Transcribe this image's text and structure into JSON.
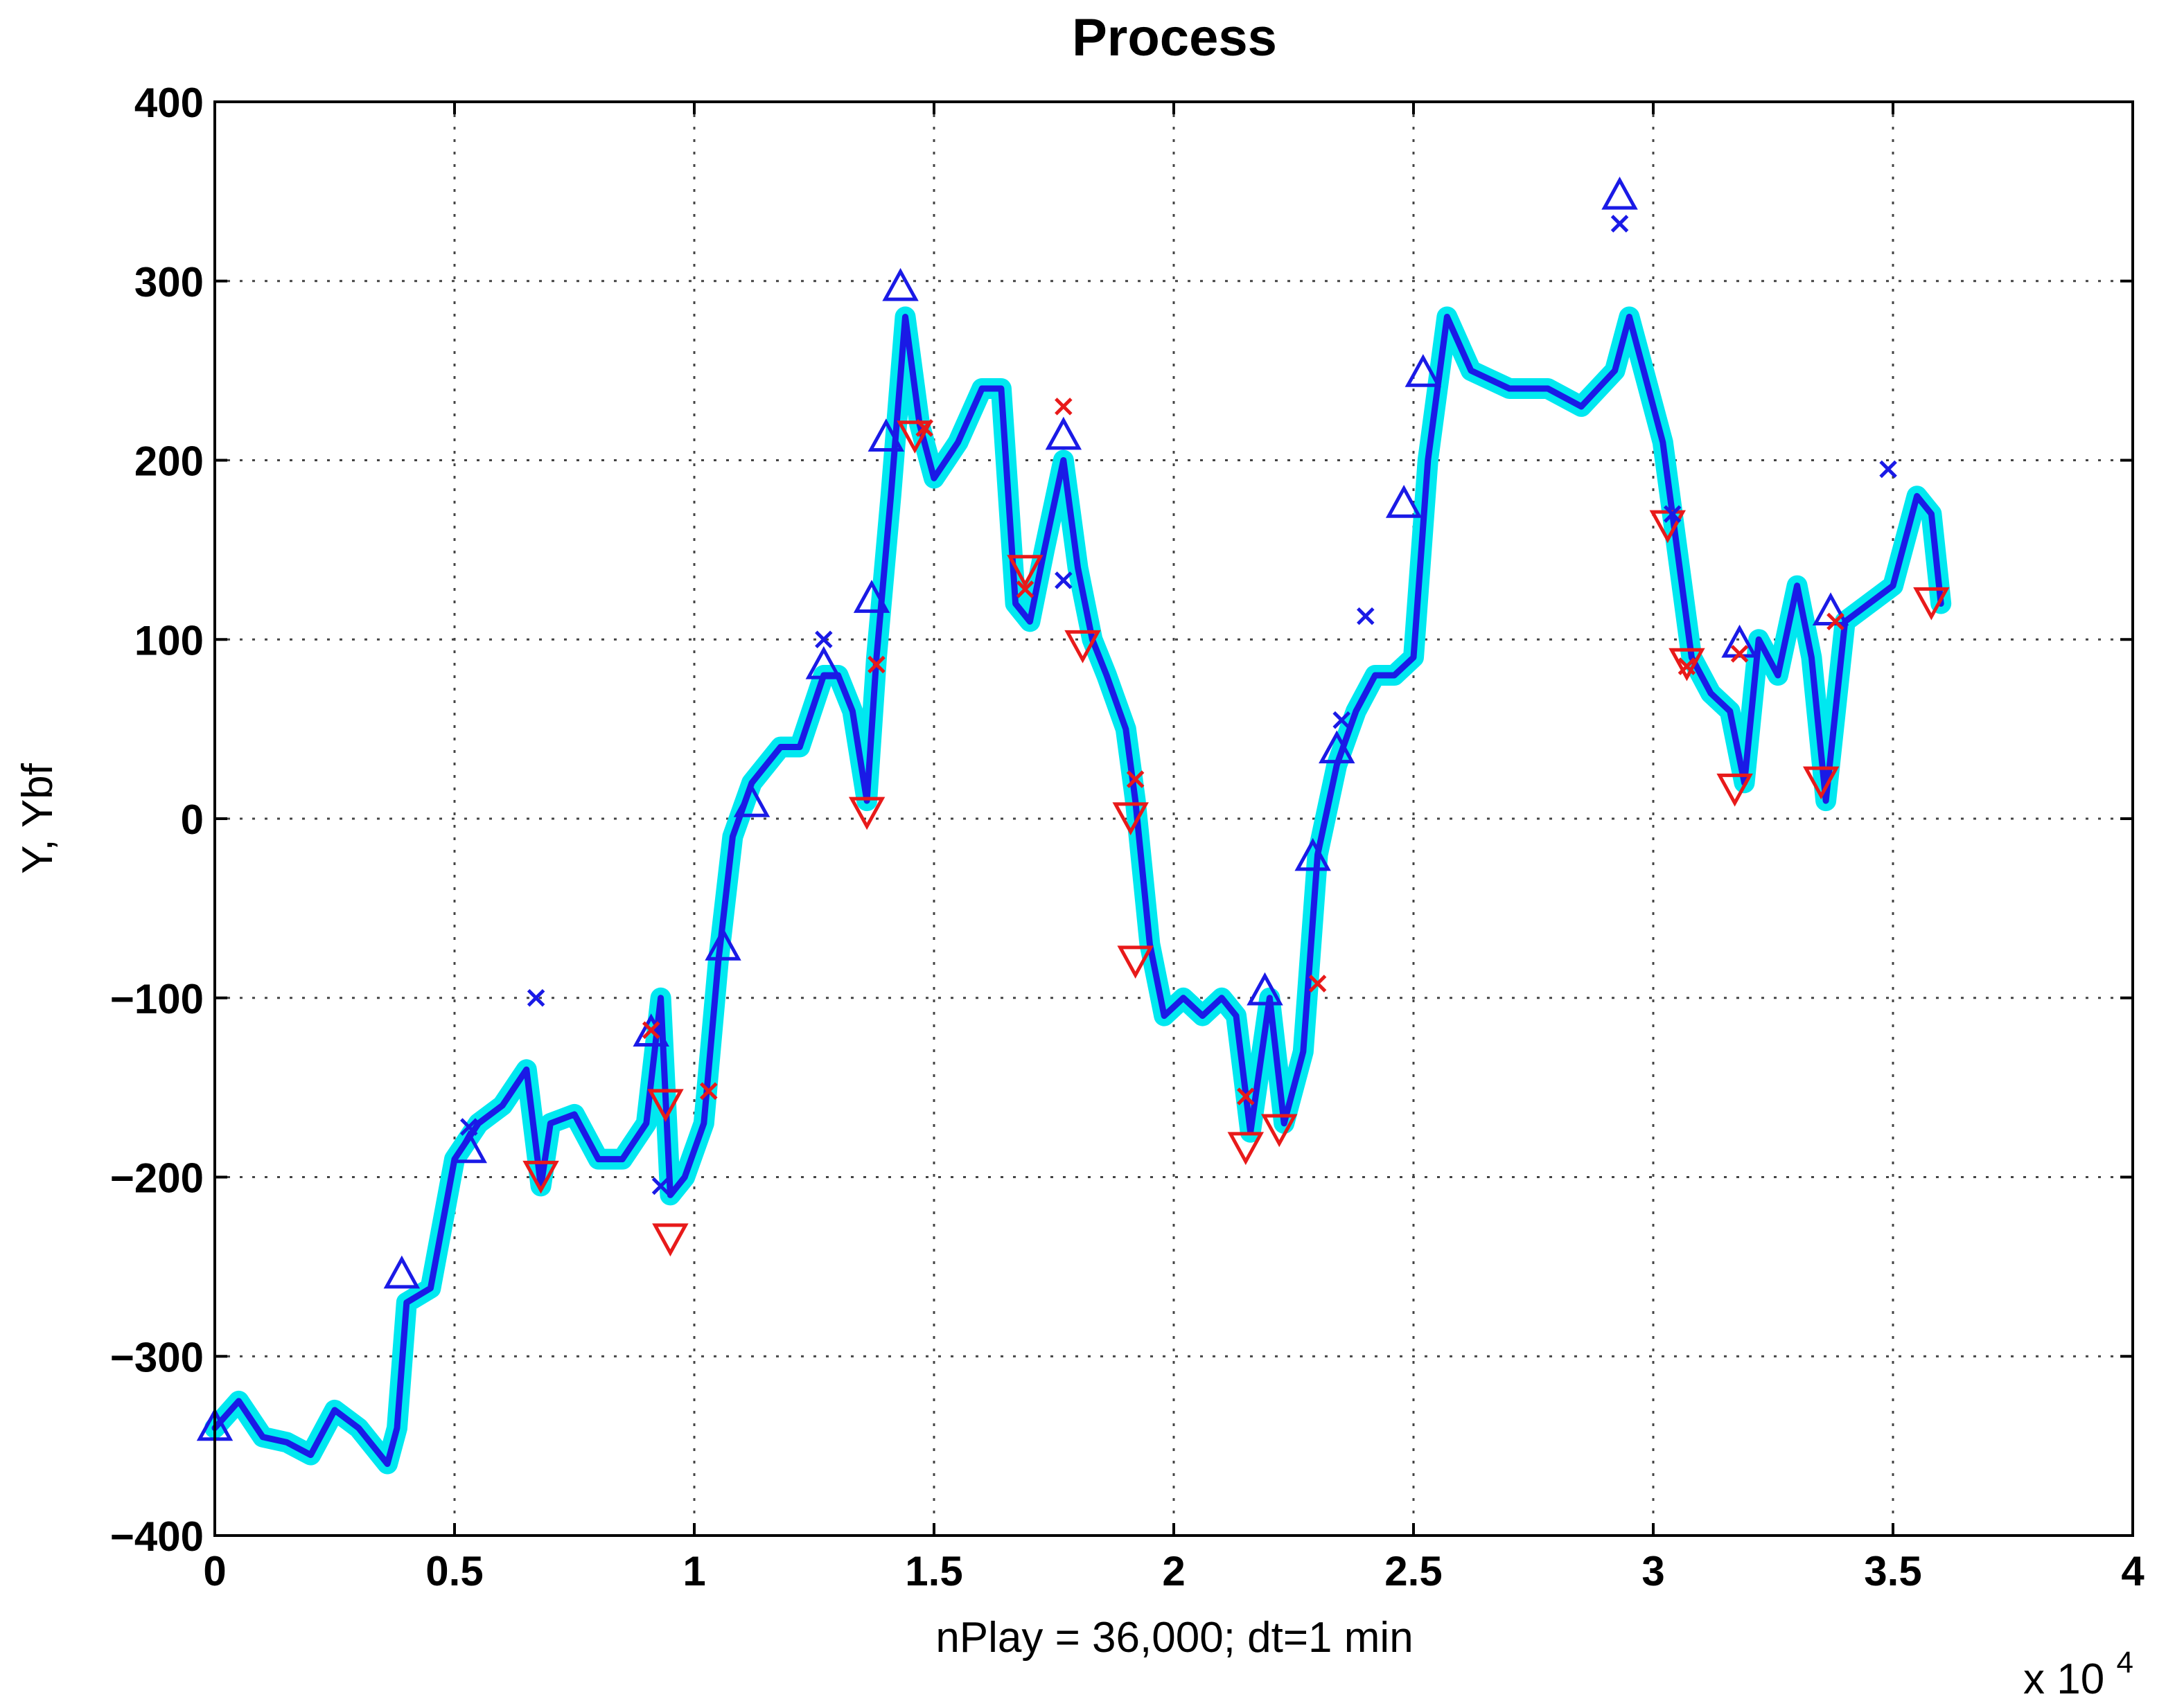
{
  "chart_data": {
    "type": "line",
    "title": "Process",
    "xlabel": "nPlay = 36,000;   dt=1 min",
    "ylabel": "Y,  Ybf",
    "x_multiplier": "x 10",
    "x_multiplier_exp": "4",
    "xlim": [
      0,
      4
    ],
    "ylim": [
      -400,
      400
    ],
    "xticks": [
      0,
      0.5,
      1,
      1.5,
      2,
      2.5,
      3,
      3.5,
      4
    ],
    "xtick_labels": [
      "0",
      "0.5",
      "1",
      "1.5",
      "2",
      "2.5",
      "3",
      "3.5",
      "4"
    ],
    "yticks": [
      -400,
      -300,
      -200,
      -100,
      0,
      100,
      200,
      300,
      400
    ],
    "ytick_labels": [
      "−400",
      "−300",
      "−200",
      "−100",
      "0",
      "100",
      "200",
      "300",
      "400"
    ],
    "grid": true,
    "series": [
      {
        "color": "#00e8f0",
        "style": "thick-band",
        "x": [
          0,
          0.05,
          0.1,
          0.15,
          0.2,
          0.25,
          0.3,
          0.36,
          0.38,
          0.4,
          0.45,
          0.5,
          0.55,
          0.6,
          0.65,
          0.68,
          0.7,
          0.75,
          0.8,
          0.85,
          0.9,
          0.93,
          0.95,
          0.98,
          1.02,
          1.05,
          1.08,
          1.12,
          1.18,
          1.22,
          1.27,
          1.3,
          1.33,
          1.36,
          1.38,
          1.41,
          1.44,
          1.47,
          1.5,
          1.55,
          1.6,
          1.64,
          1.67,
          1.7,
          1.73,
          1.77,
          1.8,
          1.83,
          1.86,
          1.9,
          1.92,
          1.95,
          1.98,
          2.02,
          2.06,
          2.1,
          2.13,
          2.16,
          2.2,
          2.23,
          2.27,
          2.3,
          2.34,
          2.38,
          2.42,
          2.46,
          2.5,
          2.53,
          2.57,
          2.62,
          2.7,
          2.78,
          2.85,
          2.92,
          2.95,
          2.98,
          3.02,
          3.05,
          3.08,
          3.12,
          3.16,
          3.19,
          3.22,
          3.26,
          3.3,
          3.33,
          3.36,
          3.4,
          3.45,
          3.5,
          3.55,
          3.58,
          3.6
        ],
        "y": [
          -340,
          -325,
          -345,
          -348,
          -355,
          -330,
          -340,
          -360,
          -340,
          -270,
          -262,
          -190,
          -170,
          -160,
          -140,
          -205,
          -170,
          -165,
          -190,
          -190,
          -170,
          -100,
          -210,
          -200,
          -170,
          -80,
          -10,
          20,
          40,
          40,
          80,
          80,
          60,
          10,
          90,
          180,
          280,
          220,
          190,
          210,
          240,
          240,
          120,
          110,
          150,
          200,
          140,
          100,
          80,
          50,
          10,
          -70,
          -110,
          -100,
          -110,
          -100,
          -110,
          -175,
          -100,
          -170,
          -130,
          -20,
          30,
          60,
          80,
          80,
          90,
          200,
          280,
          250,
          240,
          240,
          230,
          250,
          280,
          250,
          210,
          150,
          90,
          70,
          60,
          20,
          100,
          80,
          130,
          90,
          10,
          110,
          120,
          130,
          180,
          170,
          120
        ]
      },
      {
        "color": "#1a1ae6",
        "style": "line",
        "x": [
          0,
          0.05,
          0.1,
          0.15,
          0.2,
          0.25,
          0.3,
          0.36,
          0.38,
          0.4,
          0.45,
          0.5,
          0.55,
          0.6,
          0.65,
          0.68,
          0.7,
          0.75,
          0.8,
          0.85,
          0.9,
          0.93,
          0.95,
          0.98,
          1.02,
          1.05,
          1.08,
          1.12,
          1.18,
          1.22,
          1.27,
          1.3,
          1.33,
          1.36,
          1.38,
          1.41,
          1.44,
          1.47,
          1.5,
          1.55,
          1.6,
          1.64,
          1.67,
          1.7,
          1.73,
          1.77,
          1.8,
          1.83,
          1.86,
          1.9,
          1.92,
          1.95,
          1.98,
          2.02,
          2.06,
          2.1,
          2.13,
          2.16,
          2.2,
          2.23,
          2.27,
          2.3,
          2.34,
          2.38,
          2.42,
          2.46,
          2.5,
          2.53,
          2.57,
          2.62,
          2.7,
          2.78,
          2.85,
          2.92,
          2.95,
          2.98,
          3.02,
          3.05,
          3.08,
          3.12,
          3.16,
          3.19,
          3.22,
          3.26,
          3.3,
          3.33,
          3.36,
          3.4,
          3.45,
          3.5,
          3.55,
          3.58,
          3.6
        ],
        "y": [
          -340,
          -325,
          -345,
          -348,
          -355,
          -330,
          -340,
          -360,
          -340,
          -270,
          -262,
          -190,
          -170,
          -160,
          -140,
          -205,
          -170,
          -165,
          -190,
          -190,
          -170,
          -100,
          -210,
          -200,
          -170,
          -80,
          -10,
          20,
          40,
          40,
          80,
          80,
          60,
          10,
          90,
          180,
          280,
          220,
          190,
          210,
          240,
          240,
          120,
          110,
          150,
          200,
          140,
          100,
          80,
          50,
          10,
          -70,
          -110,
          -100,
          -110,
          -100,
          -110,
          -175,
          -100,
          -170,
          -130,
          -20,
          30,
          60,
          80,
          80,
          90,
          200,
          280,
          250,
          240,
          240,
          230,
          250,
          280,
          250,
          210,
          150,
          90,
          70,
          60,
          20,
          100,
          80,
          130,
          90,
          10,
          110,
          120,
          130,
          180,
          170,
          120
        ]
      }
    ],
    "markers": {
      "up_triangles": {
        "color": "#1a1ae6",
        "x": [
          0.0,
          0.39,
          0.53,
          0.91,
          1.06,
          1.12,
          1.27,
          1.37,
          1.4,
          1.43,
          1.77,
          2.19,
          2.29,
          2.34,
          2.48,
          2.52,
          2.93,
          3.18,
          3.37
        ],
        "y": [
          -340,
          -255,
          -185,
          -120,
          -72,
          8,
          85,
          122,
          212,
          296,
          213,
          -97,
          -22,
          38,
          175,
          248,
          347,
          97,
          115
        ]
      },
      "down_triangles": {
        "color": "#e81a1a",
        "x": [
          0.68,
          0.94,
          0.95,
          1.36,
          1.46,
          1.69,
          1.81,
          1.91,
          1.92,
          2.15,
          2.22,
          3.03,
          3.07,
          3.17,
          3.35,
          3.58
        ],
        "y": [
          -198,
          -158,
          -233,
          5,
          215,
          140,
          98,
          2,
          -78,
          -182,
          -172,
          165,
          88,
          18,
          22,
          122
        ]
      },
      "blue_x": {
        "color": "#1a1ae6",
        "x": [
          0.53,
          0.67,
          0.93,
          1.27,
          1.77,
          2.35,
          2.4,
          2.93,
          3.04,
          3.49
        ],
        "y": [
          -172,
          -100,
          -205,
          100,
          133,
          55,
          113,
          332,
          170,
          195
        ]
      },
      "red_x": {
        "color": "#e81a1a",
        "x": [
          0.91,
          1.03,
          1.38,
          1.48,
          1.69,
          1.77,
          1.92,
          2.15,
          2.3,
          3.07,
          3.18,
          3.38
        ],
        "y": [
          -118,
          -152,
          86,
          218,
          128,
          230,
          22,
          -155,
          -92,
          85,
          92,
          110
        ]
      }
    }
  }
}
